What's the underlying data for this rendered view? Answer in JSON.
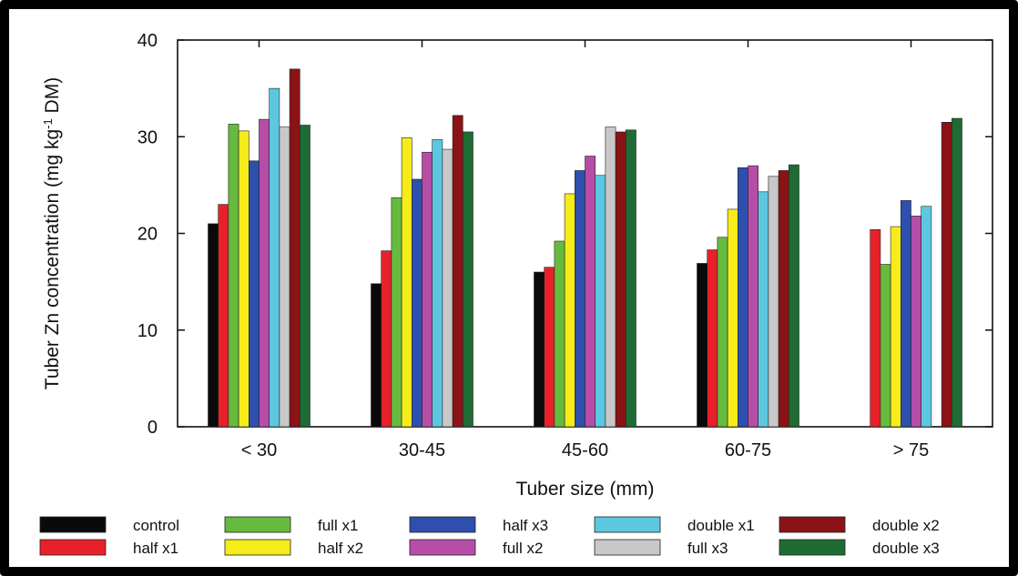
{
  "chart_data": {
    "type": "bar",
    "title": "",
    "xlabel": "Tuber size (mm)",
    "ylabel_parts": [
      "Tuber Zn concentration (mg kg",
      "-1",
      " DM)"
    ],
    "ylim": [
      0,
      40
    ],
    "yticks": [
      0,
      10,
      20,
      30,
      40
    ],
    "grid": false,
    "legend_position": "bottom",
    "categories": [
      "< 30",
      "30-45",
      "45-60",
      "60-75",
      "> 75"
    ],
    "series": [
      {
        "name": "control",
        "color": "#0a0a0a",
        "values": [
          21.0,
          14.8,
          16.0,
          16.9,
          null
        ]
      },
      {
        "name": "half x1",
        "color": "#e8202a",
        "values": [
          23.0,
          18.2,
          16.5,
          18.3,
          20.4
        ]
      },
      {
        "name": "full x1",
        "color": "#66bb3e",
        "values": [
          31.3,
          23.7,
          19.2,
          19.6,
          16.8
        ]
      },
      {
        "name": "half x2",
        "color": "#f5ec1a",
        "values": [
          30.6,
          29.9,
          24.1,
          22.5,
          20.7
        ]
      },
      {
        "name": "half x3",
        "color": "#2e4fae",
        "values": [
          27.5,
          25.6,
          26.5,
          26.8,
          23.4
        ]
      },
      {
        "name": "full x2",
        "color": "#b64ea8",
        "values": [
          31.8,
          28.4,
          28.0,
          27.0,
          21.8
        ]
      },
      {
        "name": "double x1",
        "color": "#5cc8e0",
        "values": [
          35.0,
          29.7,
          26.0,
          24.3,
          22.8
        ]
      },
      {
        "name": "full x3",
        "color": "#c8c8c8",
        "values": [
          31.0,
          28.7,
          31.0,
          25.9,
          null
        ]
      },
      {
        "name": "double x2",
        "color": "#8b1215",
        "values": [
          37.0,
          32.2,
          30.5,
          26.5,
          31.5
        ]
      },
      {
        "name": "double x3",
        "color": "#1f6b34",
        "values": [
          31.2,
          30.5,
          30.7,
          27.1,
          31.9
        ]
      }
    ],
    "legend_rows": [
      [
        "control",
        "full x1",
        "half x3",
        "double x1",
        "double x2"
      ],
      [
        "half x1",
        "half x2",
        "full x2",
        "full x3",
        "double x3"
      ]
    ]
  }
}
